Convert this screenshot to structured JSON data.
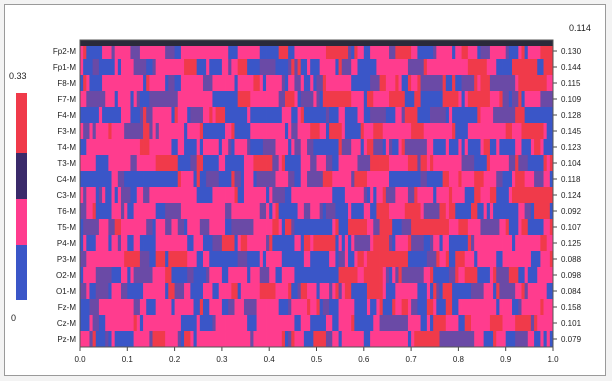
{
  "chart_data": {
    "type": "heatmap",
    "x_ticks": [
      "0.0",
      "0.1",
      "0.2",
      "0.3",
      "0.4",
      "0.5",
      "0.6",
      "0.7",
      "0.8",
      "0.9",
      "1.0"
    ],
    "xlim": [
      0,
      1
    ],
    "rows": [
      {
        "label": "Fp2-M",
        "value": "0.130"
      },
      {
        "label": "Fp1-M",
        "value": "0.144"
      },
      {
        "label": "F8-M",
        "value": "0.115"
      },
      {
        "label": "F7-M",
        "value": "0.109"
      },
      {
        "label": "F4-M",
        "value": "0.128"
      },
      {
        "label": "F3-M",
        "value": "0.145"
      },
      {
        "label": "T4-M",
        "value": "0.123"
      },
      {
        "label": "T3-M",
        "value": "0.104"
      },
      {
        "label": "C4-M",
        "value": "0.118"
      },
      {
        "label": "C3-M",
        "value": "0.124"
      },
      {
        "label": "T6-M",
        "value": "0.092"
      },
      {
        "label": "T5-M",
        "value": "0.107"
      },
      {
        "label": "P4-M",
        "value": "0.125"
      },
      {
        "label": "P3-M",
        "value": "0.088"
      },
      {
        "label": "O2-M",
        "value": "0.098"
      },
      {
        "label": "O1-M",
        "value": "0.084"
      },
      {
        "label": "Fz-M",
        "value": "0.158"
      },
      {
        "label": "Cz-M",
        "value": "0.101"
      },
      {
        "label": "Pz-M",
        "value": "0.079"
      }
    ],
    "top_right_value": "0.114",
    "colorbar": {
      "max_label": "0.33",
      "min_label": "0",
      "range": [
        0,
        0.33
      ],
      "colors": [
        "#3a56c8",
        "#6a4aa6",
        "#ff3c8e",
        "#f03a4a"
      ]
    },
    "grid": false
  }
}
